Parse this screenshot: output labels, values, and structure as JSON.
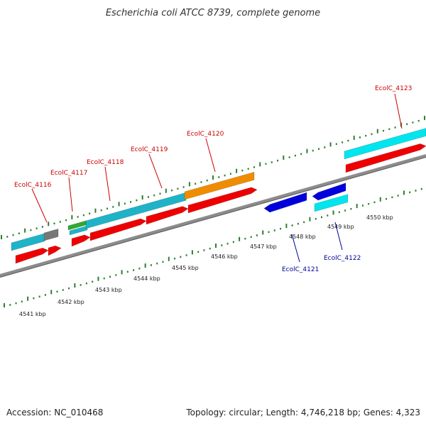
{
  "title": "Escherichia coli ATCC 8739, complete genome",
  "footer": {
    "accession": "Accession: NC_010468",
    "topology": "Topology: circular; Length: 4,746,218 bp; Genes: 4,323"
  },
  "axis": {
    "unit": "kbp",
    "ticks": [
      {
        "value": 4541,
        "label": "4541 kbp"
      },
      {
        "value": 4542,
        "label": "4542 kbp"
      },
      {
        "value": 4543,
        "label": "4543 kbp"
      },
      {
        "value": 4544,
        "label": "4544 kbp"
      },
      {
        "value": 4545,
        "label": "4545 kbp"
      },
      {
        "value": 4546,
        "label": "4546 kbp"
      },
      {
        "value": 4547,
        "label": "4547 kbp"
      },
      {
        "value": 4548,
        "label": "4548 kbp"
      },
      {
        "value": 4549,
        "label": "4549 kbp"
      },
      {
        "value": 4550,
        "label": "4550 kbp"
      }
    ]
  },
  "colors": {
    "backbone": "#8c8c8c",
    "tick": "#2e7d2e",
    "cds": "#ee0000",
    "forward_gene": "#1fb3c8",
    "reverse_gene": "#00e5ee",
    "reverse_cds": "#0000dd",
    "orange_feature": "#f08c00",
    "green_feature": "#2eaa2e",
    "gray_feature": "#777777",
    "label_forward": "#cc0000",
    "label_reverse": "#000099"
  },
  "gene_labels": [
    {
      "id": "gene-label-4116",
      "text": "EcolC_4116",
      "strand": "forward"
    },
    {
      "id": "gene-label-4117",
      "text": "EcolC_4117",
      "strand": "forward"
    },
    {
      "id": "gene-label-4118",
      "text": "EcolC_4118",
      "strand": "forward"
    },
    {
      "id": "gene-label-4119",
      "text": "EcolC_4119",
      "strand": "forward"
    },
    {
      "id": "gene-label-4120",
      "text": "EcolC_4120",
      "strand": "forward"
    },
    {
      "id": "gene-label-4121",
      "text": "EcolC_4121",
      "strand": "reverse"
    },
    {
      "id": "gene-label-4122",
      "text": "EcolC_4122",
      "strand": "reverse"
    },
    {
      "id": "gene-label-4123",
      "text": "EcolC_4123",
      "strand": "forward"
    }
  ]
}
